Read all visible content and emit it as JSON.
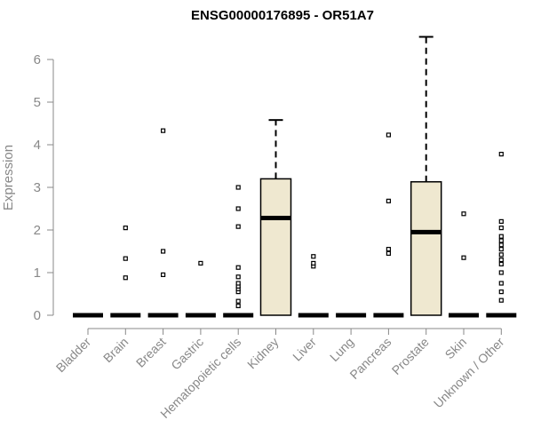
{
  "chart_data": {
    "type": "box",
    "title": "ENSG00000176895 - OR51A7",
    "xlabel": "",
    "ylabel": "Expression",
    "ylim": [
      0,
      6.6
    ],
    "yticks": [
      0,
      1,
      2,
      3,
      4,
      5,
      6
    ],
    "grid": false,
    "colors": {
      "box_fill": "#efe8d0",
      "box_stroke": "#000000",
      "axis": "#888888",
      "text_axis": "#888888",
      "title": "#000000"
    },
    "categories": [
      "Bladder",
      "Brain",
      "Breast",
      "Gastric",
      "Hematopoietic cells",
      "Kidney",
      "Liver",
      "Lung",
      "Pancreas",
      "Prostate",
      "Skin",
      "Unknown / Other"
    ],
    "boxes": [
      {
        "category": "Bladder",
        "q1": 0,
        "median": 0,
        "q3": 0,
        "whisker_low": 0,
        "whisker_high": 0,
        "outliers": []
      },
      {
        "category": "Brain",
        "q1": 0,
        "median": 0,
        "q3": 0,
        "whisker_low": 0,
        "whisker_high": 0,
        "outliers": [
          0.88,
          1.33,
          2.05
        ]
      },
      {
        "category": "Breast",
        "q1": 0,
        "median": 0,
        "q3": 0,
        "whisker_low": 0,
        "whisker_high": 0,
        "outliers": [
          0.95,
          1.5,
          4.33
        ]
      },
      {
        "category": "Gastric",
        "q1": 0,
        "median": 0,
        "q3": 0,
        "whisker_low": 0,
        "whisker_high": 0,
        "outliers": [
          1.22
        ]
      },
      {
        "category": "Hematopoietic cells",
        "q1": 0,
        "median": 0,
        "q3": 0,
        "whisker_low": 0,
        "whisker_high": 0,
        "outliers": [
          0.22,
          0.33,
          0.55,
          0.62,
          0.68,
          0.75,
          0.9,
          1.12,
          2.08,
          2.5,
          3.0
        ]
      },
      {
        "category": "Kidney",
        "q1": 0,
        "median": 2.28,
        "q3": 3.2,
        "whisker_low": 0,
        "whisker_high": 4.58,
        "outliers": []
      },
      {
        "category": "Liver",
        "q1": 0,
        "median": 0,
        "q3": 0,
        "whisker_low": 0,
        "whisker_high": 0,
        "outliers": [
          1.15,
          1.22,
          1.38
        ]
      },
      {
        "category": "Lung",
        "q1": 0,
        "median": 0,
        "q3": 0,
        "whisker_low": 0,
        "whisker_high": 0,
        "outliers": []
      },
      {
        "category": "Pancreas",
        "q1": 0,
        "median": 0,
        "q3": 0,
        "whisker_low": 0,
        "whisker_high": 0,
        "outliers": [
          1.45,
          1.55,
          2.68,
          4.23
        ]
      },
      {
        "category": "Prostate",
        "q1": 0,
        "median": 1.95,
        "q3": 3.13,
        "whisker_low": 0,
        "whisker_high": 6.53,
        "outliers": []
      },
      {
        "category": "Skin",
        "q1": 0,
        "median": 0,
        "q3": 0,
        "whisker_low": 0,
        "whisker_high": 0,
        "outliers": [
          1.35,
          2.38
        ]
      },
      {
        "category": "Unknown / Other",
        "q1": 0,
        "median": 0,
        "q3": 0,
        "whisker_low": 0,
        "whisker_high": 0,
        "outliers": [
          0.35,
          0.55,
          0.75,
          1.0,
          1.2,
          1.3,
          1.42,
          1.55,
          1.65,
          1.75,
          1.85,
          2.05,
          2.2,
          3.78
        ]
      }
    ]
  }
}
